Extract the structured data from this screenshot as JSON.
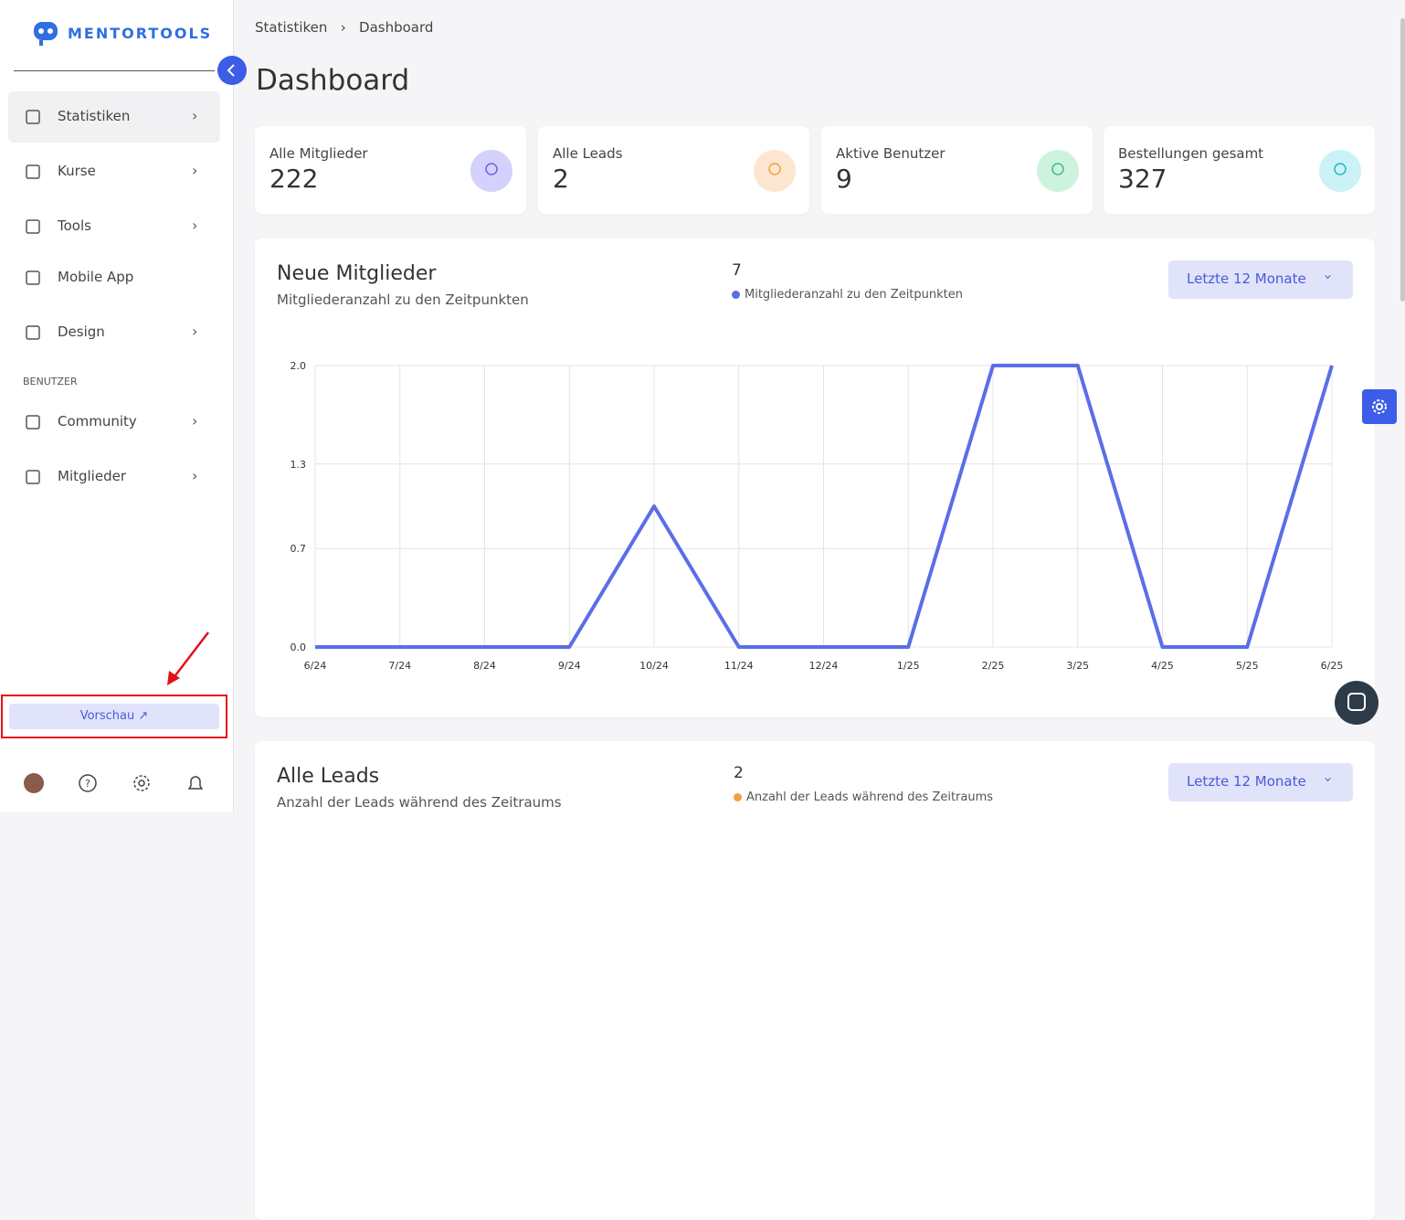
{
  "brand": "MENTORTOOLS",
  "nav": [
    {
      "label": "Statistiken"
    },
    {
      "label": "Kurse"
    },
    {
      "label": "Tools"
    },
    {
      "label": "Mobile App"
    },
    {
      "label": "Design"
    }
  ],
  "section_label": "BENUTZER",
  "nav_users": [
    {
      "label": "Community"
    },
    {
      "label": "Mitglieder"
    }
  ],
  "preview_button": "Vorschau",
  "breadcrumb": [
    "Statistiken",
    "Dashboard"
  ],
  "page_title": "Dashboard",
  "stats": [
    {
      "label": "Alle Mitglieder",
      "value": 222
    },
    {
      "label": "Alle Leads",
      "value": 2
    },
    {
      "label": "Aktive Benutzer",
      "value": 9
    },
    {
      "label": "Bestellungen gesamt",
      "value": 327
    }
  ],
  "charts": [
    {
      "type": "line",
      "title": "Neue Mitglieder",
      "subtitle": "Mitgliederanzahl zu den Zeitpunkten",
      "total": 7,
      "range_select": "Letzte 12 Monate",
      "categories": [
        "6/24",
        "7/24",
        "8/24",
        "9/24",
        "10/24",
        "11/24",
        "12/24",
        "1/25",
        "2/25",
        "3/25",
        "4/25",
        "5/25",
        "6/25"
      ],
      "series": [
        {
          "name": "Mitgliederanzahl zu den Zeitpunkten",
          "color": "#5b6ee8",
          "values": [
            0,
            0,
            0,
            0,
            1,
            0,
            0,
            0,
            2,
            2,
            0,
            0,
            2
          ]
        }
      ],
      "ylim": [
        0,
        2
      ],
      "yticks": [
        {
          "value": 0,
          "label": "0.0"
        },
        0.7,
        1.3,
        {
          "value": 2,
          "label": "2.0"
        }
      ],
      "grid": true
    },
    {
      "type": "line",
      "title": "Alle Leads",
      "subtitle": "Anzahl der Leads während des Zeitraums",
      "total": 2,
      "range_select": "Letzte 12 Monate",
      "series": [
        {
          "name": "Anzahl der Leads während des Zeitraums",
          "color": "#f59e42"
        }
      ]
    }
  ]
}
